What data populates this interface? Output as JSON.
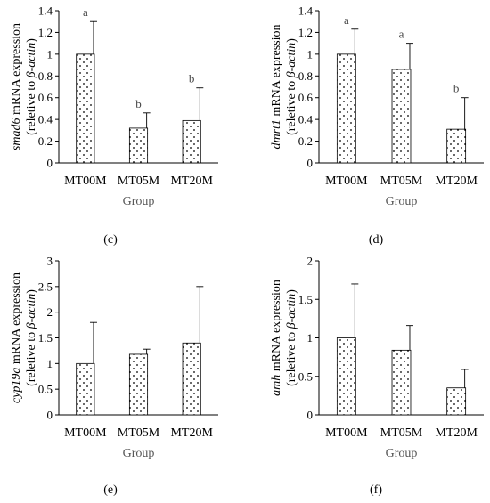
{
  "chart_data": [
    {
      "type": "bar",
      "panel_label": "(c)",
      "ylabel_gene": "smad6",
      "ylabel_main": " mRNA expression",
      "ylabel_sub_pre": "(reletive to ",
      "ylabel_sub_gene": "β-actin",
      "ylabel_sub_post": ")",
      "xlabel": "Group",
      "categories": [
        "MT00M",
        "MT05M",
        "MT20M"
      ],
      "values": [
        1.0,
        0.32,
        0.39
      ],
      "errors": [
        0.3,
        0.14,
        0.3
      ],
      "significance": [
        "a",
        "b",
        "b"
      ],
      "ylim": [
        0,
        1.4
      ],
      "yticks": [
        "0",
        "0.2",
        "0.4",
        "0.6",
        "0.8",
        "1",
        "1.2",
        "1.4"
      ]
    },
    {
      "type": "bar",
      "panel_label": "(d)",
      "ylabel_gene": "dmrt1",
      "ylabel_main": " mRNA expression",
      "ylabel_sub_pre": "(reletive to ",
      "ylabel_sub_gene": "β-actin",
      "ylabel_sub_post": ")",
      "xlabel": "Group",
      "categories": [
        "MT00M",
        "MT05M",
        "MT20M"
      ],
      "values": [
        1.0,
        0.86,
        0.31
      ],
      "errors": [
        0.23,
        0.24,
        0.29
      ],
      "significance": [
        "a",
        "a",
        "b"
      ],
      "ylim": [
        0,
        1.4
      ],
      "yticks": [
        "0",
        "0.2",
        "0.4",
        "0.6",
        "0.8",
        "1",
        "1.2",
        "1.4"
      ]
    },
    {
      "type": "bar",
      "panel_label": "(e)",
      "ylabel_gene": "cyp19a",
      "ylabel_main": " mRNA expression",
      "ylabel_sub_pre": "(reletive to ",
      "ylabel_sub_gene": "β-actin",
      "ylabel_sub_post": ")",
      "xlabel": "Group",
      "categories": [
        "MT00M",
        "MT05M",
        "MT20M"
      ],
      "values": [
        1.0,
        1.18,
        1.4
      ],
      "errors": [
        0.8,
        0.1,
        1.1
      ],
      "significance": [
        "",
        "",
        ""
      ],
      "ylim": [
        0,
        3
      ],
      "yticks": [
        "0",
        "0.5",
        "1",
        "1.5",
        "2",
        "2.5",
        "3"
      ]
    },
    {
      "type": "bar",
      "panel_label": "(f)",
      "ylabel_gene": "amh",
      "ylabel_main": " mRNA expression",
      "ylabel_sub_pre": "(reletive to ",
      "ylabel_sub_gene": "β-actin",
      "ylabel_sub_post": ")",
      "xlabel": "Group",
      "categories": [
        "MT00M",
        "MT05M",
        "MT20M"
      ],
      "values": [
        1.0,
        0.84,
        0.35
      ],
      "errors": [
        0.7,
        0.32,
        0.24
      ],
      "significance": [
        "",
        "",
        ""
      ],
      "ylim": [
        0,
        2
      ],
      "yticks": [
        "0",
        "0.5",
        "1",
        "1.5",
        "2"
      ]
    }
  ]
}
